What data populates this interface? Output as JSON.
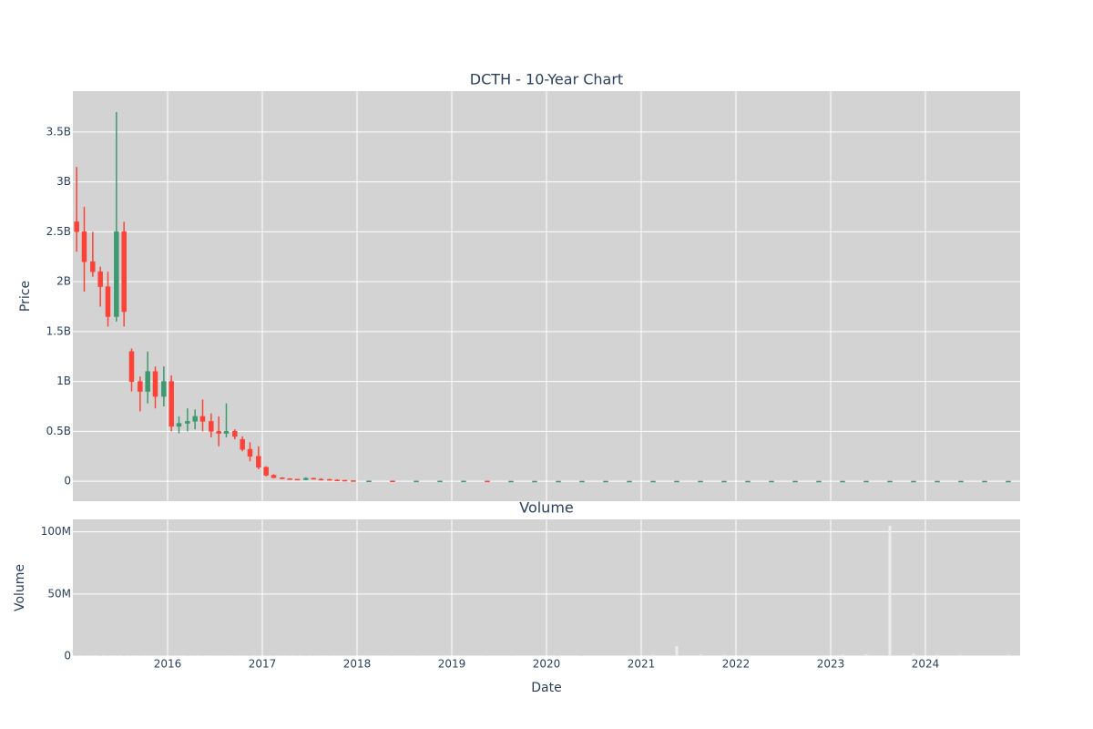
{
  "chart_data": [
    {
      "type": "candlestick",
      "title": "DCTH - 10-Year Chart",
      "ylabel": "Price",
      "x": [
        2015.04,
        2015.12,
        2015.21,
        2015.29,
        2015.37,
        2015.46,
        2015.54,
        2015.62,
        2015.71,
        2015.79,
        2015.87,
        2015.96,
        2016.04,
        2016.12,
        2016.21,
        2016.29,
        2016.37,
        2016.46,
        2016.54,
        2016.62,
        2016.71,
        2016.79,
        2016.87,
        2016.96,
        2017.04,
        2017.12,
        2017.21,
        2017.29,
        2017.37,
        2017.46,
        2017.54,
        2017.62,
        2017.71,
        2017.79,
        2017.87,
        2017.96,
        2018.125,
        2018.375,
        2018.625,
        2018.875,
        2019.125,
        2019.375,
        2019.625,
        2019.875,
        2020.125,
        2020.375,
        2020.625,
        2020.875,
        2021.125,
        2021.375,
        2021.625,
        2021.875,
        2022.125,
        2022.375,
        2022.625,
        2022.875,
        2023.125,
        2023.375,
        2023.625,
        2023.875,
        2024.125,
        2024.375,
        2024.625,
        2024.875
      ],
      "open": [
        2600000000.0,
        2500000000.0,
        2200000000.0,
        2100000000.0,
        1950000000.0,
        1650000000.0,
        2500000000.0,
        1300000000.0,
        1000000000.0,
        900000000.0,
        1100000000.0,
        850000000.0,
        1000000000.0,
        550000000.0,
        580000000.0,
        600000000.0,
        650000000.0,
        600000000.0,
        500000000.0,
        480000000.0,
        500000000.0,
        420000000.0,
        320000000.0,
        250000000.0,
        140000000.0,
        60000000.0,
        35000000.0,
        25000000.0,
        20000000.0,
        15000000.0,
        30000000.0,
        20000000.0,
        18000000.0,
        12000000.0,
        10000000.0,
        6000000.0,
        3000000.0,
        3000000.0,
        2000000.0,
        2000000.0,
        2000000.0,
        2000000.0,
        1000000.0,
        1000000.0,
        1000000.0,
        1000000.0,
        1000000.0,
        1000000.0,
        1000000.0,
        1000000.0,
        1000000.0,
        1000000.0,
        1000000.0,
        1000000.0,
        1000000.0,
        1000000.0,
        1000000.0,
        1000000.0,
        1000000.0,
        1000000.0,
        1000000.0,
        1000000.0,
        1000000.0,
        1000000.0
      ],
      "high": [
        3150000000.0,
        2750000000.0,
        2500000000.0,
        2150000000.0,
        2100000000.0,
        3700000000.0,
        2600000000.0,
        1330000000.0,
        1050000000.0,
        1300000000.0,
        1150000000.0,
        1150000000.0,
        1060000000.0,
        650000000.0,
        730000000.0,
        720000000.0,
        820000000.0,
        680000000.0,
        650000000.0,
        780000000.0,
        520000000.0,
        450000000.0,
        390000000.0,
        350000000.0,
        150000000.0,
        70000000.0,
        40000000.0,
        30000000.0,
        25000000.0,
        40000000.0,
        35000000.0,
        30000000.0,
        25000000.0,
        20000000.0,
        12000000.0,
        8000000.0,
        5000000.0,
        4000000.0,
        3000000.0,
        3000000.0,
        3000000.0,
        3000000.0,
        2000000.0,
        2000000.0,
        2000000.0,
        2000000.0,
        2000000.0,
        2000000.0,
        2000000.0,
        2000000.0,
        2000000.0,
        2000000.0,
        2000000.0,
        2000000.0,
        2000000.0,
        2000000.0,
        2000000.0,
        2000000.0,
        2000000.0,
        2000000.0,
        2000000.0,
        2000000.0,
        2000000.0,
        2000000.0
      ],
      "low": [
        2300000000.0,
        1900000000.0,
        2050000000.0,
        1750000000.0,
        1550000000.0,
        1600000000.0,
        1550000000.0,
        900000000.0,
        700000000.0,
        780000000.0,
        730000000.0,
        750000000.0,
        500000000.0,
        480000000.0,
        500000000.0,
        520000000.0,
        500000000.0,
        440000000.0,
        350000000.0,
        440000000.0,
        420000000.0,
        300000000.0,
        200000000.0,
        120000000.0,
        50000000.0,
        30000000.0,
        20000000.0,
        15000000.0,
        10000000.0,
        10000000.0,
        18000000.0,
        15000000.0,
        10000000.0,
        8000000.0,
        4000000.0,
        2000000.0,
        1000000.0,
        1000000.0,
        1000000.0,
        1000000.0,
        1000000.0,
        1000000.0,
        500000.0,
        500000.0,
        500000.0,
        500000.0,
        500000.0,
        500000.0,
        500000.0,
        500000.0,
        500000.0,
        500000.0,
        500000.0,
        500000.0,
        500000.0,
        500000.0,
        500000.0,
        500000.0,
        500000.0,
        500000.0,
        500000.0,
        500000.0,
        500000.0,
        500000.0
      ],
      "close": [
        2500000000.0,
        2200000000.0,
        2100000000.0,
        1950000000.0,
        1650000000.0,
        2500000000.0,
        1700000000.0,
        1000000000.0,
        900000000.0,
        1100000000.0,
        850000000.0,
        1000000000.0,
        550000000.0,
        580000000.0,
        600000000.0,
        650000000.0,
        600000000.0,
        500000000.0,
        480000000.0,
        500000000.0,
        450000000.0,
        320000000.0,
        250000000.0,
        140000000.0,
        60000000.0,
        35000000.0,
        25000000.0,
        20000000.0,
        15000000.0,
        30000000.0,
        20000000.0,
        18000000.0,
        12000000.0,
        10000000.0,
        6000000.0,
        3000000.0,
        3000000.0,
        2000000.0,
        2000000.0,
        2000000.0,
        2000000.0,
        1000000.0,
        1000000.0,
        1000000.0,
        1000000.0,
        1000000.0,
        1000000.0,
        1000000.0,
        1000000.0,
        1000000.0,
        1000000.0,
        1000000.0,
        1000000.0,
        1000000.0,
        1000000.0,
        1000000.0,
        1000000.0,
        1000000.0,
        1000000.0,
        1000000.0,
        1000000.0,
        1000000.0,
        1000000.0,
        1000000.0
      ],
      "increasing_color": "#3d9970",
      "decreasing_color": "#ff4136",
      "xlim": [
        2015,
        2025
      ],
      "xticks": [
        2016,
        2017,
        2018,
        2019,
        2020,
        2021,
        2022,
        2023,
        2024
      ],
      "ylim": [
        -200000000.0,
        3910000000.0
      ],
      "yticks": [
        0,
        {
          "value": 500000000.0,
          "label": "0.5B"
        },
        {
          "value": 1000000000.0,
          "label": "1B"
        },
        {
          "value": 1500000000.0,
          "label": "1.5B"
        },
        {
          "value": 2000000000.0,
          "label": "2B"
        },
        {
          "value": 2500000000.0,
          "label": "2.5B"
        },
        {
          "value": 3000000000.0,
          "label": "3B"
        },
        {
          "value": 3500000000.0,
          "label": "3.5B"
        }
      ],
      "grid": true
    },
    {
      "type": "bar",
      "title": "Volume",
      "ylabel": "Volume",
      "xlabel": "Date",
      "x": [
        2015.04,
        2015.12,
        2015.21,
        2015.29,
        2015.37,
        2015.46,
        2015.54,
        2015.62,
        2015.71,
        2015.79,
        2015.87,
        2015.96,
        2016.04,
        2016.12,
        2016.21,
        2016.29,
        2016.37,
        2016.46,
        2016.54,
        2016.62,
        2016.71,
        2016.79,
        2016.87,
        2016.96,
        2017.04,
        2017.12,
        2017.21,
        2017.29,
        2017.37,
        2017.46,
        2017.54,
        2017.62,
        2017.71,
        2017.79,
        2017.87,
        2017.96,
        2018.125,
        2018.375,
        2018.625,
        2018.875,
        2019.125,
        2019.375,
        2019.625,
        2019.875,
        2020.125,
        2020.375,
        2020.625,
        2020.875,
        2021.125,
        2021.375,
        2021.625,
        2021.875,
        2022.125,
        2022.375,
        2022.625,
        2022.875,
        2023.125,
        2023.375,
        2023.625,
        2023.875,
        2024.125,
        2024.375,
        2024.625,
        2024.875
      ],
      "values": [
        300000.0,
        200000.0,
        200000.0,
        300000.0,
        200000.0,
        500000.0,
        300000.0,
        200000.0,
        200000.0,
        200000.0,
        200000.0,
        200000.0,
        200000.0,
        200000.0,
        300000.0,
        200000.0,
        200000.0,
        200000.0,
        200000.0,
        200000.0,
        200000.0,
        200000.0,
        300000.0,
        300000.0,
        400000.0,
        300000.0,
        200000.0,
        200000.0,
        200000.0,
        300000.0,
        200000.0,
        200000.0,
        200000.0,
        200000.0,
        200000.0,
        200000.0,
        200000.0,
        200000.0,
        200000.0,
        200000.0,
        200000.0,
        200000.0,
        200000.0,
        200000.0,
        300000.0,
        400000.0,
        600000.0,
        800000.0,
        1000000.0,
        8000000.0,
        1200000.0,
        1000000.0,
        800000.0,
        600000.0,
        600000.0,
        500000.0,
        1200000.0,
        1500000.0,
        105000000.0,
        2000000.0,
        1000000.0,
        800000.0,
        600000.0,
        1000000.0
      ],
      "color": "#ececec",
      "xlim": [
        2015,
        2025
      ],
      "xticks": [
        2016,
        2017,
        2018,
        2019,
        2020,
        2021,
        2022,
        2023,
        2024
      ],
      "ylim": [
        0,
        110000000.0
      ],
      "yticks": [
        0,
        {
          "value": 50000000.0,
          "label": "50M"
        },
        {
          "value": 100000000.0,
          "label": "100M"
        }
      ],
      "grid": true
    }
  ]
}
